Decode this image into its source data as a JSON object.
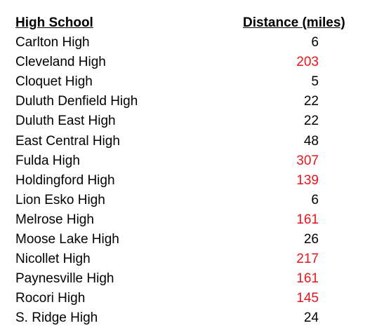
{
  "table": {
    "header": [
      "High School",
      "Distance (miles)"
    ],
    "rows": [
      {
        "school": "Carlton High",
        "distance": 6,
        "color": "#000000"
      },
      {
        "school": "Cleveland High",
        "distance": 203,
        "color": "#e8161b"
      },
      {
        "school": "Cloquet High",
        "distance": 5,
        "color": "#000000"
      },
      {
        "school": "Duluth Denfield High",
        "distance": 22,
        "color": "#000000"
      },
      {
        "school": "Duluth East High",
        "distance": 22,
        "color": "#000000"
      },
      {
        "school": "East Central High",
        "distance": 48,
        "color": "#000000"
      },
      {
        "school": "Fulda High",
        "distance": 307,
        "color": "#e8161b"
      },
      {
        "school": "Holdingford High",
        "distance": 139,
        "color": "#e8161b"
      },
      {
        "school": "Lion Esko High",
        "distance": 6,
        "color": "#000000"
      },
      {
        "school": "Melrose High",
        "distance": 161,
        "color": "#e8161b"
      },
      {
        "school": "Moose Lake High",
        "distance": 26,
        "color": "#000000"
      },
      {
        "school": "Nicollet High",
        "distance": 217,
        "color": "#e8161b"
      },
      {
        "school": "Paynesville High",
        "distance": 161,
        "color": "#e8161b"
      },
      {
        "school": "Rocori High",
        "distance": 145,
        "color": "#e8161b"
      },
      {
        "school": "S. Ridge High",
        "distance": 24,
        "color": "#000000"
      }
    ]
  }
}
